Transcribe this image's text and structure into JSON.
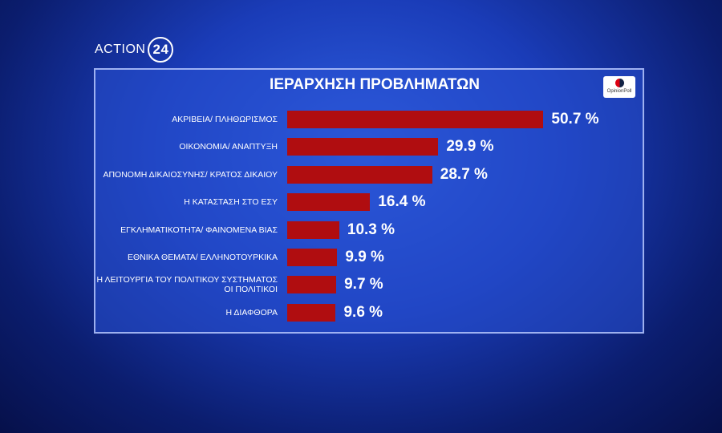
{
  "channel_logo": {
    "name": "ACTION",
    "number": "24"
  },
  "poll_logo": "OpinionPoll",
  "chart_data": {
    "type": "bar",
    "orientation": "horizontal",
    "title": "ΙΕΡΑΡΧΗΣΗ ΠΡΟΒΛΗΜΑΤΩΝ",
    "categories": [
      "ΑΚΡΙΒΕΙΑ/ ΠΛΗΘΩΡΙΣΜΟΣ",
      "ΟΙΚΟΝΟΜΙΑ/ ΑΝΑΠΤΥΞΗ",
      "ΑΠΟΝΟΜΗ ΔΙΚΑΙΟΣΥΝΗΣ/ ΚΡΑΤΟΣ ΔΙΚΑΙΟΥ",
      "Η ΚΑΤΑΣΤΑΣΗ ΣΤΟ ΕΣΥ",
      "ΕΓΚΛΗΜΑΤΙΚΟΤΗΤΑ/ ΦΑΙΝΟΜΕΝΑ ΒΙΑΣ",
      "ΕΘΝΙΚΑ ΘΕΜΑΤΑ/ ΕΛΛΗΝΟΤΟΥΡΚΙΚΑ",
      "Η ΛΕΙΤΟΥΡΓΙΑ ΤΟΥ ΠΟΛΙΤΙΚΟΥ ΣΥΣΤΗΜΑΤΟΣ\nΟΙ ΠΟΛΙΤΙΚΟΙ",
      "Η ΔΙΑΦΘΟΡΑ"
    ],
    "values": [
      50.7,
      29.9,
      28.7,
      16.4,
      10.3,
      9.9,
      9.7,
      9.6
    ],
    "value_labels": [
      "50.7 %",
      "29.9 %",
      "28.7 %",
      "16.4 %",
      "10.3 %",
      "9.9 %",
      "9.7 %",
      "9.6 %"
    ],
    "color": "#b00d10"
  }
}
